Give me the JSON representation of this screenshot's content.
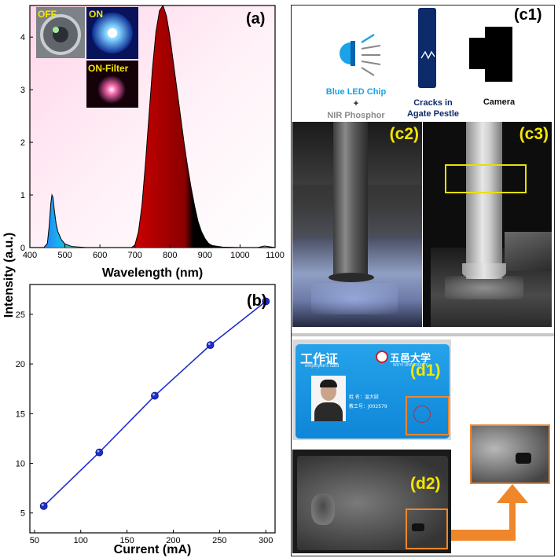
{
  "chart_data": [
    {
      "type": "area",
      "panel_label": "(a)",
      "xlabel": "Wavelength (nm)",
      "ylabel": "Intensity (a.u.)",
      "xlim": [
        400,
        1100
      ],
      "ylim": [
        0,
        4.6
      ],
      "xticks": [
        400,
        500,
        600,
        700,
        800,
        900,
        1000,
        1100
      ],
      "yticks": [
        0,
        1,
        2,
        3,
        4
      ],
      "x": [
        400,
        440,
        450,
        455,
        460,
        463,
        466,
        470,
        475,
        480,
        490,
        500,
        520,
        560,
        600,
        650,
        690,
        700,
        710,
        720,
        730,
        740,
        750,
        760,
        770,
        780,
        790,
        800,
        810,
        820,
        830,
        840,
        850,
        860,
        870,
        880,
        890,
        900,
        910,
        920,
        950,
        1000,
        1050,
        1070,
        1100
      ],
      "y": [
        0,
        0,
        0.08,
        0.4,
        0.85,
        1.0,
        0.95,
        0.7,
        0.45,
        0.3,
        0.15,
        0.07,
        0.02,
        0,
        0,
        0,
        0,
        0.05,
        0.3,
        0.8,
        1.6,
        2.5,
        3.4,
        4.1,
        4.5,
        4.6,
        4.4,
        4.0,
        3.5,
        3.0,
        2.5,
        2.0,
        1.55,
        1.15,
        0.8,
        0.5,
        0.3,
        0.17,
        0.08,
        0.04,
        0.01,
        0,
        0,
        0.03,
        0
      ],
      "insets": {
        "off": "OFF",
        "on": "ON",
        "on_filter": "ON-Filter"
      }
    },
    {
      "type": "line",
      "panel_label": "(b)",
      "xlabel": "Current (mA)",
      "ylabel": "",
      "xlim": [
        45,
        310
      ],
      "ylim": [
        3,
        28
      ],
      "xticks": [
        50,
        100,
        150,
        200,
        250,
        300
      ],
      "yticks": [
        5,
        10,
        15,
        20,
        25
      ],
      "x": [
        60,
        120,
        180,
        240,
        300
      ],
      "y": [
        5.7,
        11.1,
        16.8,
        21.9,
        26.3
      ],
      "color": "#1f2ecc"
    }
  ],
  "panel_c": {
    "label": "(c1)",
    "c2": "(c2)",
    "c3": "(c3)",
    "items": [
      {
        "line1": "Blue LED Chip",
        "line2": "+",
        "line3": "NIR Phosphor"
      },
      {
        "line1": "Cracks in",
        "line2": "Agate Pestle"
      },
      {
        "line1": "Camera"
      }
    ]
  },
  "panel_d": {
    "d1": "(d1)",
    "d2": "(d2)",
    "card_title": "工作证",
    "card_sub": "employee's card",
    "university": "五邑大学",
    "university_en": "WUYI UNIVERSITY",
    "name_row": "姓  名：温大尉",
    "id_row": "教工号：J002579"
  },
  "colors": {
    "accent_yellow": "#f5e600",
    "arrow_orange": "#f0862a",
    "led_blue": "#1aa3e8",
    "navy": "#0d2a6b"
  }
}
